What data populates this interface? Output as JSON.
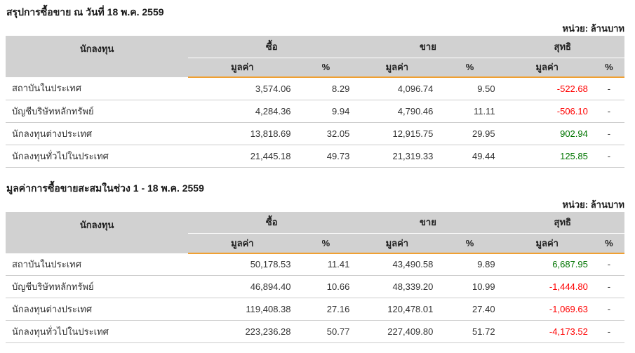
{
  "page": {
    "unit_label": "หน่วย: ล้านบาท"
  },
  "colors": {
    "header_bg": "#d1d1d1",
    "accent_orange": "#f0a032",
    "negative_red": "#ff0000",
    "positive_green": "#007500",
    "row_separator": "#cccccc"
  },
  "columns": {
    "investor": "นักลงทุน",
    "buy": "ซื้อ",
    "sell": "ขาย",
    "net": "สุทธิ",
    "value": "มูลค่า",
    "pct": "%"
  },
  "tables": [
    {
      "title": "สรุปการซื้อขาย ณ วันที่ 18 พ.ค. 2559",
      "rows": [
        {
          "investor": "สถาบันในประเทศ",
          "buy_value": "3,574.06",
          "buy_pct": "8.29",
          "sell_value": "4,096.74",
          "sell_pct": "9.50",
          "net_value": "-522.68",
          "net_sign": "neg",
          "net_pct": "-"
        },
        {
          "investor": "บัญชีบริษัทหลักทรัพย์",
          "buy_value": "4,284.36",
          "buy_pct": "9.94",
          "sell_value": "4,790.46",
          "sell_pct": "11.11",
          "net_value": "-506.10",
          "net_sign": "neg",
          "net_pct": "-"
        },
        {
          "investor": "นักลงทุนต่างประเทศ",
          "buy_value": "13,818.69",
          "buy_pct": "32.05",
          "sell_value": "12,915.75",
          "sell_pct": "29.95",
          "net_value": "902.94",
          "net_sign": "pos",
          "net_pct": "-"
        },
        {
          "investor": "นักลงทุนทั่วไปในประเทศ",
          "buy_value": "21,445.18",
          "buy_pct": "49.73",
          "sell_value": "21,319.33",
          "sell_pct": "49.44",
          "net_value": "125.85",
          "net_sign": "pos",
          "net_pct": "-"
        }
      ]
    },
    {
      "title": "มูลค่าการซื้อขายสะสมในช่วง 1 - 18 พ.ค. 2559",
      "rows": [
        {
          "investor": "สถาบันในประเทศ",
          "buy_value": "50,178.53",
          "buy_pct": "11.41",
          "sell_value": "43,490.58",
          "sell_pct": "9.89",
          "net_value": "6,687.95",
          "net_sign": "pos",
          "net_pct": "-"
        },
        {
          "investor": "บัญชีบริษัทหลักทรัพย์",
          "buy_value": "46,894.40",
          "buy_pct": "10.66",
          "sell_value": "48,339.20",
          "sell_pct": "10.99",
          "net_value": "-1,444.80",
          "net_sign": "neg",
          "net_pct": "-"
        },
        {
          "investor": "นักลงทุนต่างประเทศ",
          "buy_value": "119,408.38",
          "buy_pct": "27.16",
          "sell_value": "120,478.01",
          "sell_pct": "27.40",
          "net_value": "-1,069.63",
          "net_sign": "neg",
          "net_pct": "-"
        },
        {
          "investor": "นักลงทุนทั่วไปในประเทศ",
          "buy_value": "223,236.28",
          "buy_pct": "50.77",
          "sell_value": "227,409.80",
          "sell_pct": "51.72",
          "net_value": "-4,173.52",
          "net_sign": "neg",
          "net_pct": "-"
        }
      ]
    }
  ]
}
